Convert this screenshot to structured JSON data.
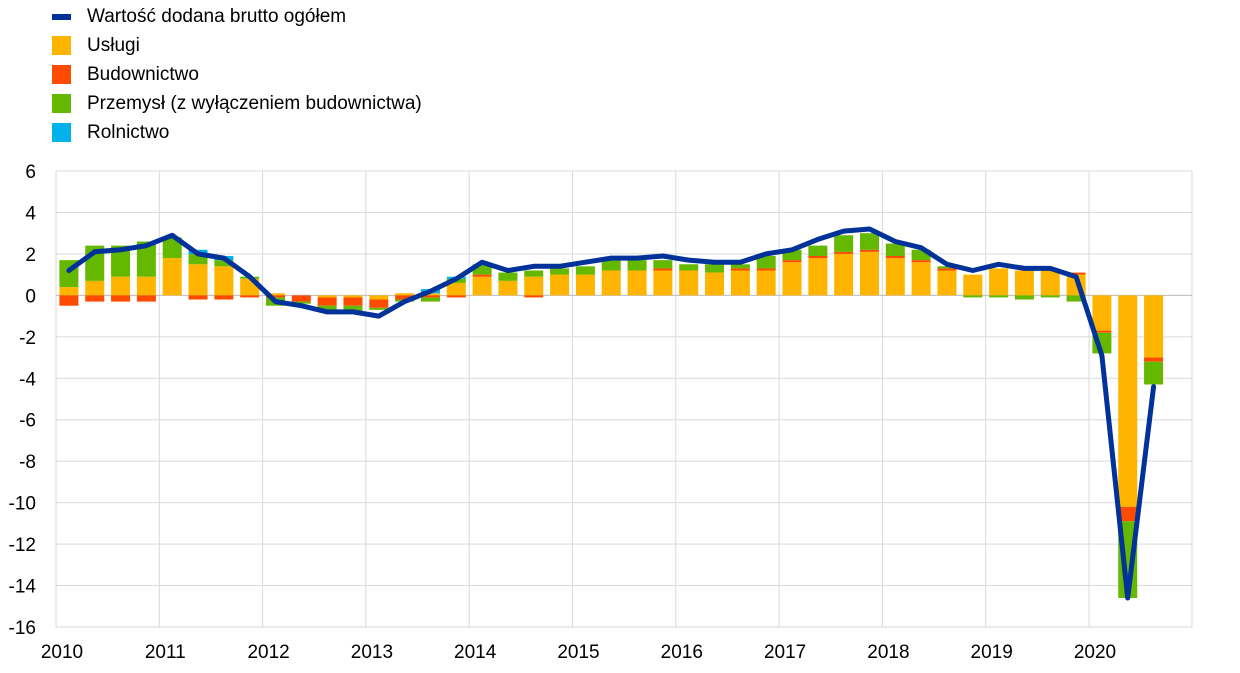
{
  "chart_data": {
    "type": "bar",
    "ylim": [
      -16,
      6
    ],
    "yticks": [
      6,
      4,
      2,
      0,
      -2,
      -4,
      -6,
      -8,
      -10,
      -12,
      -14,
      -16
    ],
    "xtick_labels": [
      "2010",
      "2011",
      "2012",
      "2013",
      "2014",
      "2015",
      "2016",
      "2017",
      "2018",
      "2019",
      "2020"
    ],
    "grid": true,
    "legend_position": "top-left",
    "categories": [
      "2010Q1",
      "2010Q2",
      "2010Q3",
      "2010Q4",
      "2011Q1",
      "2011Q2",
      "2011Q3",
      "2011Q4",
      "2012Q1",
      "2012Q2",
      "2012Q3",
      "2012Q4",
      "2013Q1",
      "2013Q2",
      "2013Q3",
      "2013Q4",
      "2014Q1",
      "2014Q2",
      "2014Q3",
      "2014Q4",
      "2015Q1",
      "2015Q2",
      "2015Q3",
      "2015Q4",
      "2016Q1",
      "2016Q2",
      "2016Q3",
      "2016Q4",
      "2017Q1",
      "2017Q2",
      "2017Q3",
      "2017Q4",
      "2018Q1",
      "2018Q2",
      "2018Q3",
      "2018Q4",
      "2019Q1",
      "2019Q2",
      "2019Q3",
      "2019Q4",
      "2020Q1",
      "2020Q2",
      "2020Q3"
    ],
    "series": [
      {
        "name": "Usługi",
        "kind": "bar",
        "color": "#FFB400",
        "values": [
          0.4,
          0.7,
          0.9,
          0.9,
          1.8,
          1.5,
          1.4,
          0.8,
          0.1,
          0.0,
          -0.1,
          -0.1,
          -0.2,
          0.1,
          0.1,
          0.6,
          0.9,
          0.7,
          0.9,
          1.0,
          1.0,
          1.2,
          1.2,
          1.2,
          1.2,
          1.1,
          1.2,
          1.2,
          1.6,
          1.8,
          2.0,
          2.1,
          1.8,
          1.6,
          1.2,
          1.0,
          1.3,
          1.2,
          1.2,
          1.0,
          -1.7,
          -10.2,
          -3.0
        ]
      },
      {
        "name": "Budownictwo",
        "kind": "bar",
        "color": "#FF4B00",
        "values": [
          -0.5,
          -0.3,
          -0.3,
          -0.3,
          0.0,
          -0.2,
          -0.2,
          -0.1,
          -0.1,
          -0.3,
          -0.4,
          -0.4,
          -0.4,
          -0.2,
          -0.1,
          -0.1,
          0.1,
          0.0,
          -0.1,
          0.0,
          0.0,
          0.0,
          0.0,
          0.1,
          0.0,
          0.0,
          0.1,
          0.1,
          0.1,
          0.1,
          0.1,
          0.1,
          0.1,
          0.1,
          0.1,
          0.0,
          0.0,
          0.0,
          0.0,
          0.1,
          -0.1,
          -0.7,
          -0.2
        ]
      },
      {
        "name": "Przemysł (z wyłączeniem budownictwa)",
        "kind": "bar",
        "color": "#65B800",
        "values": [
          1.3,
          1.7,
          1.5,
          1.7,
          1.0,
          0.5,
          0.3,
          0.1,
          -0.4,
          -0.1,
          -0.2,
          -0.3,
          -0.1,
          -0.1,
          -0.2,
          0.2,
          0.5,
          0.4,
          0.3,
          0.3,
          0.4,
          0.5,
          0.5,
          0.4,
          0.3,
          0.4,
          0.2,
          0.6,
          0.5,
          0.5,
          0.8,
          0.8,
          0.6,
          0.5,
          0.1,
          -0.1,
          -0.1,
          -0.2,
          -0.1,
          -0.3,
          -1.0,
          -3.7,
          -1.1
        ]
      },
      {
        "name": "Rolnictwo",
        "kind": "bar",
        "color": "#00B1EA",
        "values": [
          0.0,
          0.0,
          0.0,
          0.0,
          0.0,
          0.2,
          0.2,
          0.0,
          0.0,
          0.0,
          -0.1,
          0.0,
          0.0,
          0.0,
          0.2,
          0.1,
          0.0,
          0.0,
          0.0,
          0.0,
          0.0,
          0.0,
          0.0,
          0.0,
          0.0,
          0.0,
          0.0,
          0.0,
          0.0,
          0.0,
          0.0,
          0.0,
          0.0,
          0.0,
          0.0,
          0.0,
          0.0,
          0.0,
          0.0,
          0.0,
          0.0,
          0.0,
          0.0
        ]
      },
      {
        "name": "Wartość dodana brutto ogółem",
        "kind": "line",
        "color": "#003299",
        "values": [
          1.2,
          2.1,
          2.2,
          2.4,
          2.9,
          2.0,
          1.8,
          0.9,
          -0.3,
          -0.5,
          -0.8,
          -0.8,
          -1.0,
          -0.3,
          0.2,
          0.8,
          1.6,
          1.2,
          1.4,
          1.4,
          1.6,
          1.8,
          1.8,
          1.9,
          1.7,
          1.6,
          1.6,
          2.0,
          2.2,
          2.7,
          3.1,
          3.2,
          2.6,
          2.3,
          1.5,
          1.2,
          1.5,
          1.3,
          1.3,
          0.9,
          -2.9,
          -14.6,
          -4.4
        ]
      }
    ]
  },
  "legend": [
    {
      "label": "Wartość dodana brutto ogółem",
      "color": "#003299",
      "kind": "line"
    },
    {
      "label": "Usługi",
      "color": "#FFB400",
      "kind": "bar"
    },
    {
      "label": "Budownictwo",
      "color": "#FF4B00",
      "kind": "bar"
    },
    {
      "label": "Przemysł (z wyłączeniem budownictwa)",
      "color": "#65B800",
      "kind": "bar"
    },
    {
      "label": "Rolnictwo",
      "color": "#00B1EA",
      "kind": "bar"
    }
  ]
}
